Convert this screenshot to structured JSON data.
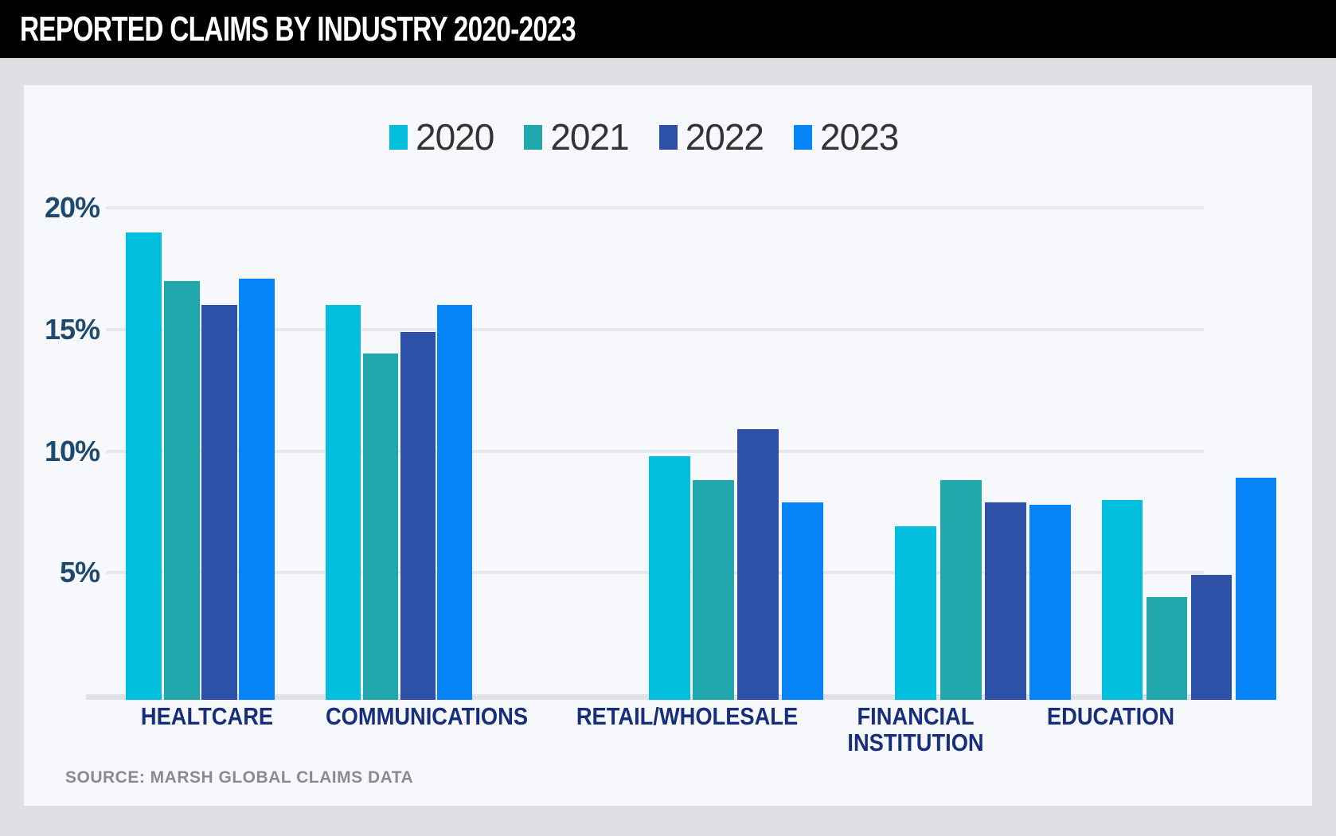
{
  "header": {
    "title": "REPORTED CLAIMS BY INDUSTRY 2020-2023"
  },
  "chart_data": {
    "type": "bar",
    "title": "REPORTED CLAIMS BY INDUSTRY 2020-2023",
    "categories": [
      "HEALTCARE",
      "COMMUNICATIONS",
      "RETAIL/WHOLESALE",
      "FINANCIAL INSTITUTION",
      "EDUCATION"
    ],
    "series": [
      {
        "name": "2020",
        "color": "#00bedc",
        "values": [
          19.0,
          16.0,
          9.8,
          6.9,
          8.0
        ]
      },
      {
        "name": "2021",
        "color": "#21a8ac",
        "values": [
          17.0,
          14.0,
          8.8,
          8.8,
          4.0
        ]
      },
      {
        "name": "2022",
        "color": "#2c51a6",
        "values": [
          16.0,
          14.9,
          10.9,
          7.9,
          4.9
        ]
      },
      {
        "name": "2023",
        "color": "#0585f8",
        "values": [
          17.1,
          16.0,
          7.9,
          7.8,
          8.9
        ]
      }
    ],
    "y_ticks": [
      {
        "label": "20%",
        "value": 20
      },
      {
        "label": "15%",
        "value": 15
      },
      {
        "label": "10%",
        "value": 10
      },
      {
        "label": "5%",
        "value": 5
      }
    ],
    "ylim": [
      0,
      21
    ],
    "ylabel": "",
    "xlabel": "",
    "grid": "horizontal",
    "legend_position": "top",
    "legend_labels": [
      "2020",
      "2021",
      "2022",
      "2023"
    ]
  },
  "source": {
    "label": "SOURCE: MARSH GLOBAL CLAIMS DATA"
  },
  "colors": {
    "header_bg": "#000000",
    "header_text": "#ffffff",
    "page_bg": "#dee0e3",
    "card_bg": "#f6f8fb",
    "gridline": "#e7e8ea",
    "axis_label": "#1d4a6e",
    "category_label": "#172e7d",
    "source_text": "#8b8b8b"
  }
}
